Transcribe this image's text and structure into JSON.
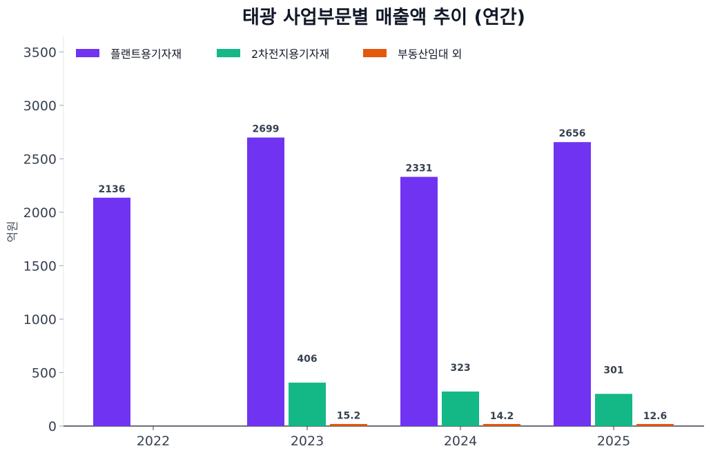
{
  "chart_data": {
    "type": "bar",
    "title": "태광 사업부문별 매출액 추이 (연간)",
    "xlabel": "",
    "ylabel": "억원",
    "categories": [
      "2022",
      "2023",
      "2024",
      "2025"
    ],
    "ylim": [
      0,
      3650
    ],
    "yticks": [
      0,
      500,
      1000,
      1500,
      2000,
      2500,
      3000,
      3500
    ],
    "grid": false,
    "legend_position": "top-left",
    "series": [
      {
        "name": "플랜트용기자재",
        "color": "#7033f1",
        "values": [
          2136,
          2699,
          2331,
          2656
        ],
        "labels": [
          "2136",
          "2699",
          "2331",
          "2656"
        ]
      },
      {
        "name": "2차전지용기자재",
        "color": "#13b886",
        "values": [
          null,
          406,
          323,
          301
        ],
        "labels": [
          "",
          "406",
          "323",
          "301"
        ]
      },
      {
        "name": "부동산임대 외",
        "color": "#e4580d",
        "values": [
          null,
          15.2,
          14.2,
          12.6
        ],
        "labels": [
          "",
          "15.2",
          "14.2",
          "12.6"
        ]
      }
    ]
  }
}
